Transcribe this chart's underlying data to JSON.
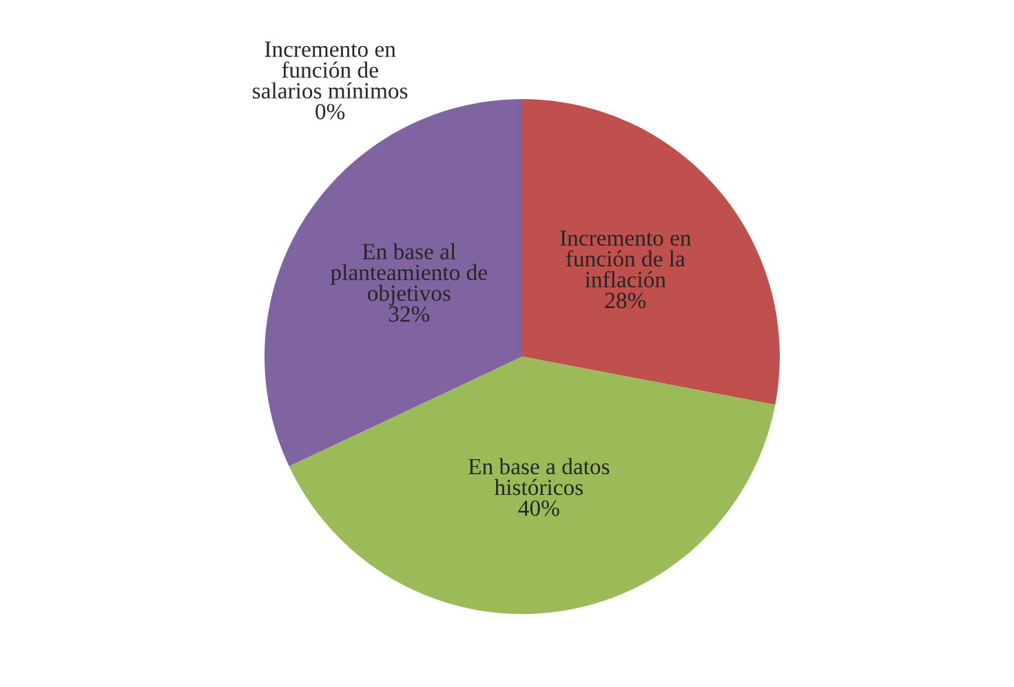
{
  "chart_data": {
    "type": "pie",
    "categories": [
      "Incremento en\nfunción de\nsalarios mínimos",
      "Incremento en\nfunción de la\ninflación",
      "En base a datos\nhistóricos",
      "En base al\nplanteamiento de\nobjetivos"
    ],
    "values": [
      0,
      28,
      40,
      32
    ],
    "value_labels": [
      "0%",
      "28%",
      "40%",
      "32%"
    ],
    "colors": [
      "#4f81bd",
      "#c0504d",
      "#9bbb59",
      "#8064a2"
    ],
    "legend": false
  }
}
